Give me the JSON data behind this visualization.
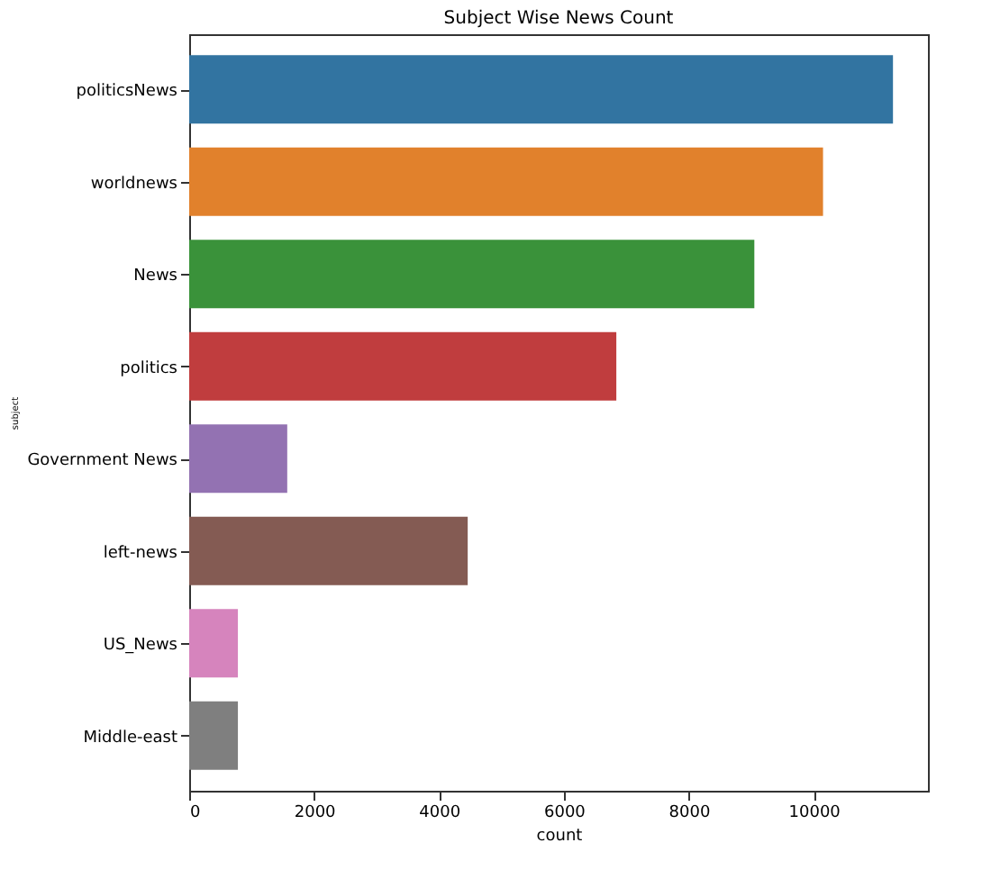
{
  "chart_data": {
    "type": "bar",
    "orientation": "horizontal",
    "title": "Subject Wise News Count",
    "xlabel": "count",
    "ylabel": "subject",
    "categories": [
      "politicsNews",
      "worldnews",
      "News",
      "politics",
      "Government News",
      "left-news",
      "US_News",
      "Middle-east"
    ],
    "values": [
      11270,
      10150,
      9050,
      6840,
      1570,
      4460,
      780,
      780
    ],
    "colors": [
      "#3274a1",
      "#e1812c",
      "#3a923a",
      "#c03d3e",
      "#9372b2",
      "#845b53",
      "#d684bd",
      "#7f7f7f"
    ],
    "xlim": [
      0,
      11830
    ],
    "xticks": [
      0,
      2000,
      4000,
      6000,
      8000,
      10000
    ],
    "grid": false
  }
}
